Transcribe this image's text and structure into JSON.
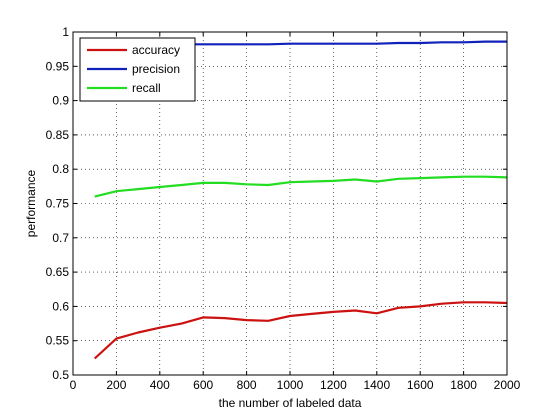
{
  "chart_data": {
    "type": "line",
    "title": "",
    "xlabel": "the number of labeled data",
    "ylabel": "performance",
    "xlim": [
      0,
      2000
    ],
    "ylim": [
      0.5,
      1
    ],
    "xticks": [
      0,
      200,
      400,
      600,
      800,
      1000,
      1200,
      1400,
      1600,
      1800,
      2000
    ],
    "yticks": [
      0.5,
      0.55,
      0.6,
      0.65,
      0.7,
      0.75,
      0.8,
      0.85,
      0.9,
      0.95,
      1
    ],
    "xtick_labels": [
      "0",
      "200",
      "400",
      "600",
      "800",
      "1000",
      "1200",
      "1400",
      "1600",
      "1800",
      "2000"
    ],
    "ytick_labels": [
      "0.5",
      "0.55",
      "0.6",
      "0.65",
      "0.7",
      "0.75",
      "0.8",
      "0.85",
      "0.9",
      "0.95",
      "1"
    ],
    "grid": true,
    "legend_position": "top-left",
    "x": [
      100,
      200,
      300,
      400,
      500,
      600,
      700,
      800,
      900,
      1000,
      1100,
      1200,
      1300,
      1400,
      1500,
      1600,
      1700,
      1800,
      1900,
      2000
    ],
    "series": [
      {
        "name": "accuracy",
        "color": "#cc1111",
        "values": [
          0.524,
          0.553,
          0.562,
          0.569,
          0.575,
          0.584,
          0.583,
          0.58,
          0.579,
          0.586,
          0.589,
          0.592,
          0.594,
          0.59,
          0.598,
          0.6,
          0.604,
          0.606,
          0.606,
          0.605
        ]
      },
      {
        "name": "precision",
        "color": "#1122bb",
        "values": [
          0.98,
          0.981,
          0.981,
          0.981,
          0.982,
          0.982,
          0.982,
          0.982,
          0.982,
          0.983,
          0.983,
          0.983,
          0.983,
          0.983,
          0.984,
          0.984,
          0.985,
          0.985,
          0.986,
          0.986
        ]
      },
      {
        "name": "recall",
        "color": "#22dd22",
        "values": [
          0.76,
          0.768,
          0.771,
          0.774,
          0.777,
          0.78,
          0.78,
          0.778,
          0.777,
          0.781,
          0.782,
          0.783,
          0.785,
          0.782,
          0.786,
          0.787,
          0.788,
          0.789,
          0.789,
          0.788
        ]
      }
    ]
  }
}
